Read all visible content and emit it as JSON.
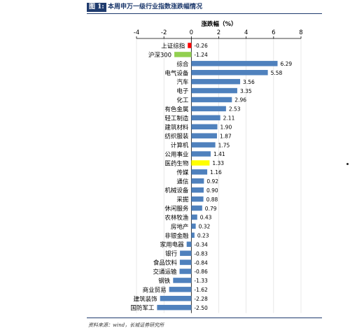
{
  "header": {
    "figure_tag": "图 1:",
    "title": "本周申万一级行业指数涨跌幅情况"
  },
  "source": "资料来源：wind，长城证券研究所",
  "colors": {
    "bar": "#4f81bd",
    "highlight_red": "#ff0000",
    "highlight_green": "#92d050",
    "highlight_yellow": "#ffff00",
    "grid": "#d9d9d9",
    "axis": "#000000"
  },
  "chart_data": {
    "type": "bar",
    "orientation": "horizontal",
    "title": "涨跌幅（%）",
    "xlim": [
      -4,
      8
    ],
    "xticks": [
      "-4",
      "-2",
      "0",
      "2",
      "4",
      "6",
      "8"
    ],
    "grid": true,
    "categories": [
      "上证综指",
      "沪深300",
      "综合",
      "电气设备",
      "汽车",
      "电子",
      "化工",
      "有色金属",
      "轻工制造",
      "建筑材料",
      "纺织服装",
      "计算机",
      "公用事业",
      "医药生物",
      "传媒",
      "通信",
      "机械设备",
      "采掘",
      "休闲服务",
      "农林牧渔",
      "房地产",
      "非银金融",
      "家用电器",
      "银行",
      "食品饮料",
      "交通运输",
      "钢铁",
      "商业贸易",
      "建筑装饰",
      "国防军工"
    ],
    "values": [
      -0.26,
      -1.24,
      6.29,
      5.58,
      3.56,
      3.35,
      2.96,
      2.53,
      2.11,
      1.9,
      1.87,
      1.75,
      1.41,
      1.33,
      1.16,
      0.92,
      0.9,
      0.88,
      0.79,
      0.43,
      0.32,
      0.23,
      -0.34,
      -0.83,
      -0.84,
      -0.86,
      -1.33,
      -1.62,
      -2.28,
      -2.5
    ],
    "value_labels": [
      "-0.26",
      "-1.24",
      "6.29",
      "5.58",
      "3.56",
      "3.35",
      "2.96",
      "2.53",
      "2.11",
      "1.90",
      "1.87",
      "1.75",
      "1.41",
      "1.33",
      "1.16",
      "0.92",
      "0.90",
      "0.88",
      "0.79",
      "0.43",
      "0.32",
      "0.23",
      "-0.34",
      "-0.83",
      "-0.84",
      "-0.86",
      "-1.33",
      "-1.62",
      "-2.28",
      "-2.50"
    ],
    "highlights": {
      "上证综指": "#ff0000",
      "沪深300": "#92d050",
      "医药生物": "#ffff00"
    }
  }
}
